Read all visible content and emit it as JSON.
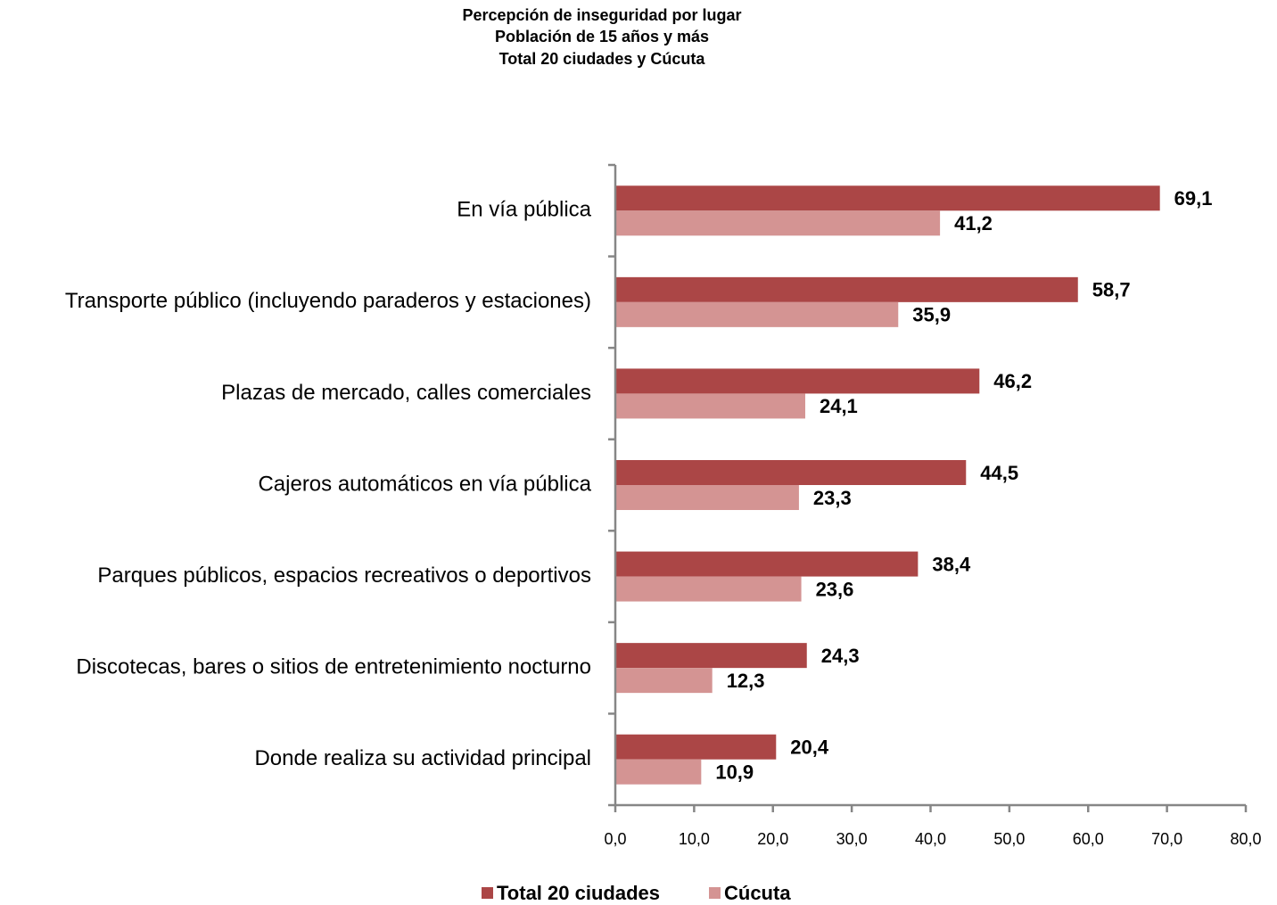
{
  "chart_data": {
    "type": "hbar",
    "title": [
      "Percepción de inseguridad por lugar",
      "Población de 15 años y más",
      "Total 20 ciudades y Cúcuta"
    ],
    "categories": [
      "En vía pública",
      "Transporte público (incluyendo paraderos y estaciones)",
      "Plazas de mercado, calles comerciales",
      "Cajeros automáticos en vía pública",
      "Parques públicos, espacios recreativos o deportivos",
      "Discotecas, bares o sitios de entretenimiento nocturno",
      "Donde realiza su actividad principal"
    ],
    "series": [
      {
        "name": "Total 20 ciudades",
        "color": "#ab4646",
        "values": [
          69.1,
          58.7,
          46.2,
          44.5,
          38.4,
          24.3,
          20.4
        ],
        "value_labels": [
          "69,1",
          "58,7",
          "46,2",
          "44,5",
          "38,4",
          "24,3",
          "20,4"
        ]
      },
      {
        "name": "Cúcuta",
        "color": "#d49493",
        "values": [
          41.2,
          35.9,
          24.1,
          23.3,
          23.6,
          12.3,
          10.9
        ],
        "value_labels": [
          "41,2",
          "35,9",
          "24,1",
          "23,3",
          "23,6",
          "12,3",
          "10,9"
        ]
      }
    ],
    "xlim": [
      0,
      80
    ],
    "xticks": [
      {
        "value": 0,
        "label": "0,0"
      },
      {
        "value": 10,
        "label": "10,0"
      },
      {
        "value": 20,
        "label": "20,0"
      },
      {
        "value": 30,
        "label": "30,0"
      },
      {
        "value": 40,
        "label": "40,0"
      },
      {
        "value": 50,
        "label": "50,0"
      },
      {
        "value": 60,
        "label": "60,0"
      },
      {
        "value": 70,
        "label": "70,0"
      },
      {
        "value": 80,
        "label": "80,0"
      }
    ],
    "legend": "bottom"
  }
}
